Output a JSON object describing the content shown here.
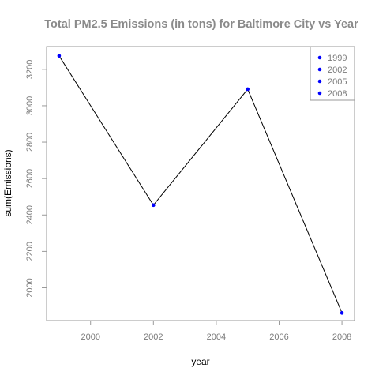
{
  "chart_data": {
    "type": "line",
    "title": "Total PM2.5 Emissions (in tons) for Baltimore City vs Year",
    "xlabel": "year",
    "ylabel": "sum(Emissions)",
    "x": [
      1999,
      2002,
      2005,
      2008
    ],
    "y": [
      3274,
      2454,
      3091,
      1862
    ],
    "xlim": [
      1998.6,
      2008.4
    ],
    "ylim": [
      1820,
      3325
    ],
    "xticks": [
      2000,
      2002,
      2004,
      2006,
      2008
    ],
    "yticks": [
      2000,
      2200,
      2400,
      2600,
      2800,
      3000,
      3200
    ],
    "legend": {
      "position": "top-right",
      "entries": [
        "1999",
        "2002",
        "2005",
        "2008"
      ]
    },
    "grid": false,
    "line_color": "#000000",
    "point_color": "#0000ff"
  }
}
